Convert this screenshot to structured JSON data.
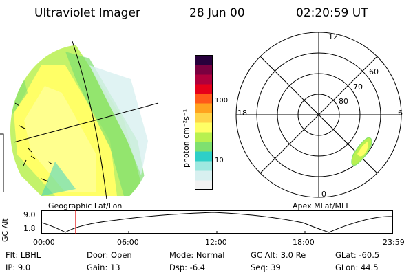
{
  "header": {
    "title": "Ultraviolet Imager",
    "date": "28 Jun 00",
    "time": "02:20:59 UT"
  },
  "colorbar": {
    "label": "photon cm⁻²s⁻¹",
    "tick_100": "100",
    "tick_10": "10",
    "colors": [
      "#f2f2f2",
      "#d8f0f0",
      "#9ee8e0",
      "#2ecfc8",
      "#7fe070",
      "#b8f050",
      "#ffff66",
      "#ffd54a",
      "#ffa31f",
      "#ff5a1a",
      "#e6001a",
      "#b0003c",
      "#7a0040",
      "#28003c"
    ]
  },
  "geo_panel": {
    "label": "Geographic Lat/Lon"
  },
  "polar": {
    "label": "Apex MLat/MLT",
    "mlt_top": "12",
    "mlt_left": "18",
    "mlt_right": "6",
    "mlt_bottom": "0",
    "lat_60": "60",
    "lat_70": "70",
    "lat_80": "80"
  },
  "gc_alt": {
    "ylabel": "GC Alt",
    "ymax": "9.0",
    "ymin": "1.8",
    "x_ticks": [
      "00:00",
      "06:00",
      "12:00",
      "18:00",
      "23:59"
    ],
    "marker_time": "02:20:59"
  },
  "info": {
    "flt": "Flt: LBHL",
    "ip": "IP:  9.0",
    "door": "Door: Open",
    "gain": "Gain: 13",
    "mode": "Mode: Normal",
    "dsp": "Dsp:    -6.4",
    "gcalt": "GC Alt: 3.0 Re",
    "seq": "Seq: 39",
    "glat": "GLat:  -60.5",
    "glon": "GLon:  44.5"
  }
}
